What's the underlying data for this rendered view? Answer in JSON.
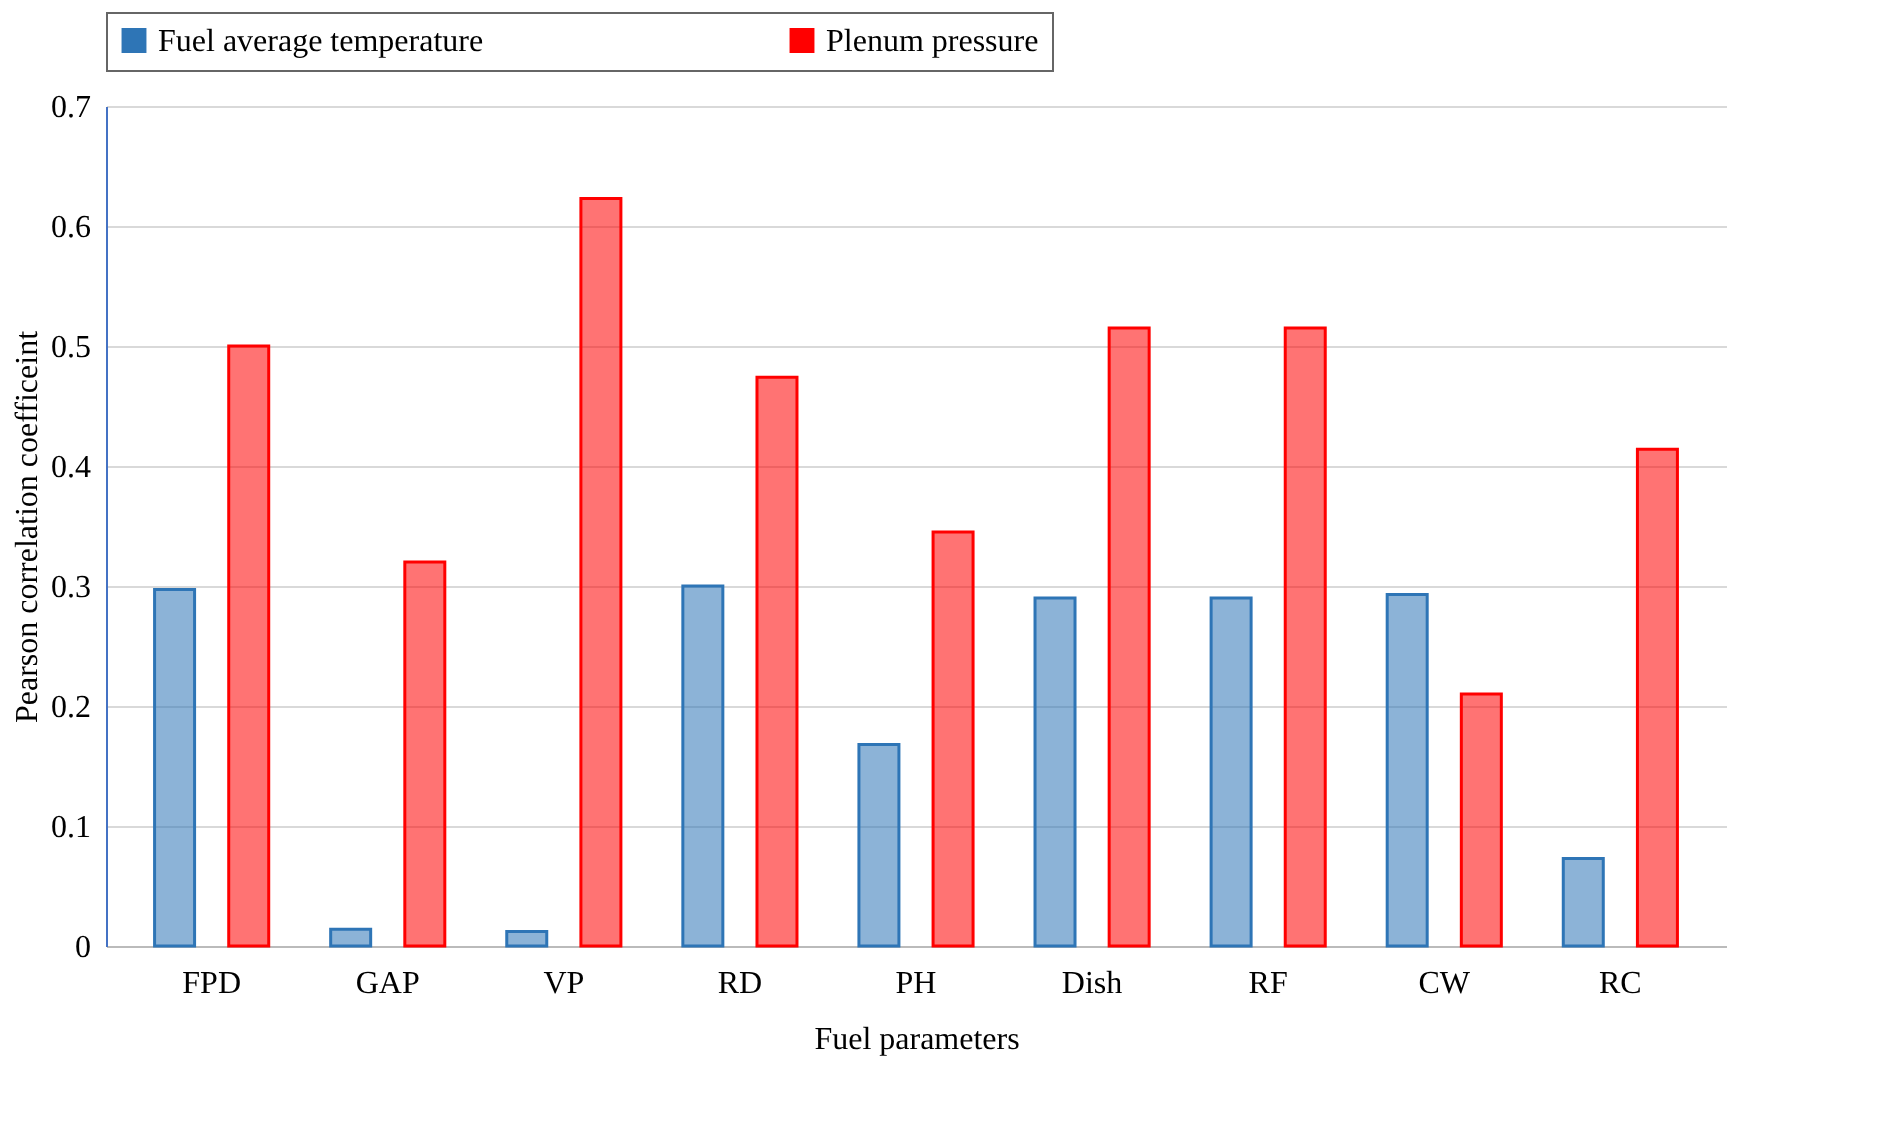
{
  "chart_data": {
    "type": "bar",
    "xlabel": "Fuel parameters",
    "ylabel": "Pearson correlation coefficeint",
    "categories": [
      "FPD",
      "GAP",
      "VP",
      "RD",
      "PH",
      "Dish",
      "RF",
      "CW",
      "RC"
    ],
    "series": [
      {
        "name": "Fuel average temperature",
        "color": "#2e75b6",
        "values": [
          0.297,
          0.014,
          0.012,
          0.3,
          0.168,
          0.29,
          0.29,
          0.293,
          0.073
        ]
      },
      {
        "name": "Plenum pressure",
        "color": "#ff0000",
        "values": [
          0.5,
          0.32,
          0.623,
          0.474,
          0.345,
          0.515,
          0.515,
          0.21,
          0.414
        ]
      }
    ],
    "ylim": [
      0,
      0.7
    ],
    "yticks": [
      0,
      0.1,
      0.2,
      0.3,
      0.4,
      0.5,
      0.6,
      0.7
    ],
    "grid": "y",
    "legend": "top"
  }
}
